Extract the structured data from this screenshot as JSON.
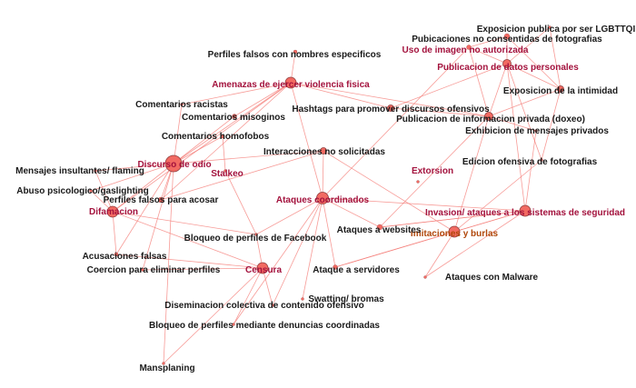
{
  "colors": {
    "node_fill": "#f26a62",
    "node_stroke": "#8c3b3b",
    "edge": "#f47a74",
    "label_default": "#1a1a1a",
    "label_category": "#a3123d",
    "label_highlight": "#b0470a"
  },
  "nodes": [
    {
      "id": "perf_nombres",
      "label": "Perfiles falsos con nombres especificos",
      "kind": "default"
    },
    {
      "id": "amenazas",
      "label": "Amenazas de ejercer violencia fisica",
      "kind": "category"
    },
    {
      "id": "racistas",
      "label": "Comentarios racistas",
      "kind": "default"
    },
    {
      "id": "misoginos",
      "label": "Comentarios misoginos",
      "kind": "default"
    },
    {
      "id": "homofobos",
      "label": "Comentarios homofobos",
      "kind": "default"
    },
    {
      "id": "odio",
      "label": "Discurso de odio",
      "kind": "category"
    },
    {
      "id": "flaming",
      "label": "Mensajes insultantes/ flaming",
      "kind": "default"
    },
    {
      "id": "abuso",
      "label": "Abuso psicologico/gaslighting",
      "kind": "default"
    },
    {
      "id": "perf_acosar",
      "label": "Perfiles falsos para acosar",
      "kind": "default"
    },
    {
      "id": "difamacion",
      "label": "Difamacion",
      "kind": "category"
    },
    {
      "id": "stalkeo",
      "label": "Stalkeo",
      "kind": "category"
    },
    {
      "id": "interacciones",
      "label": "Interacciones no solicitadas",
      "kind": "default"
    },
    {
      "id": "hashtags",
      "label": "Hashtags para promover discursos ofensivos",
      "kind": "default"
    },
    {
      "id": "coordinados",
      "label": "Ataques coordinados",
      "kind": "category"
    },
    {
      "id": "uso_imagen",
      "label": "Uso de imagen no autorizada",
      "kind": "category"
    },
    {
      "id": "pubicaciones",
      "label": "Pubicaciones no consentidas de fotografias",
      "kind": "default"
    },
    {
      "id": "lgbttqi",
      "label": "Exposicion publica por ser LGBTTQI",
      "kind": "default"
    },
    {
      "id": "datos",
      "label": "Publicacion de datos personales",
      "kind": "category"
    },
    {
      "id": "intimidad",
      "label": "Exposicion de la intimidad",
      "kind": "default"
    },
    {
      "id": "doxeo",
      "label": "Publicacion de informacion privada (doxeo)",
      "kind": "default"
    },
    {
      "id": "exhibicion",
      "label": "Exhibicion de mensajes privados",
      "kind": "default"
    },
    {
      "id": "edicion",
      "label": "Edicion ofensiva de fotografias",
      "kind": "default"
    },
    {
      "id": "extorsion",
      "label": "Extorsion",
      "kind": "category"
    },
    {
      "id": "invasion",
      "label": "Invasion/ ataques a los sistemas de seguridad",
      "kind": "category"
    },
    {
      "id": "imitaciones",
      "label": "Imitaciones y burlas",
      "kind": "highlight"
    },
    {
      "id": "websites",
      "label": "Ataques a websites",
      "kind": "default"
    },
    {
      "id": "bloq_fb",
      "label": "Bloqueo de perfiles de Facebook",
      "kind": "default"
    },
    {
      "id": "acusaciones",
      "label": "Acusaciones falsas",
      "kind": "default"
    },
    {
      "id": "coercion",
      "label": "Coercion para eliminar perfiles",
      "kind": "default"
    },
    {
      "id": "censura",
      "label": "Censura",
      "kind": "category"
    },
    {
      "id": "servidores",
      "label": "Ataque a servidores",
      "kind": "default"
    },
    {
      "id": "malware",
      "label": "Ataques con Malware",
      "kind": "default"
    },
    {
      "id": "swatting",
      "label": "Swatting/ bromas",
      "kind": "default"
    },
    {
      "id": "diseminacion",
      "label": "Diseminacion colectiva de contenido ofensivo",
      "kind": "default"
    },
    {
      "id": "bloq_denuncias",
      "label": "Bloqueo de perfiles mediante denuncias coordinadas",
      "kind": "default"
    },
    {
      "id": "mansplaning",
      "label": "Mansplaning",
      "kind": "default"
    }
  ],
  "edges": [
    [
      "amenazas",
      "perf_nombres"
    ],
    [
      "amenazas",
      "odio"
    ],
    [
      "amenazas",
      "misoginos"
    ],
    [
      "amenazas",
      "hashtags"
    ],
    [
      "amenazas",
      "doxeo"
    ],
    [
      "amenazas",
      "difamacion"
    ],
    [
      "amenazas",
      "perf_acosar"
    ],
    [
      "amenazas",
      "coordinados"
    ],
    [
      "amenazas",
      "racistas"
    ],
    [
      "odio",
      "racistas"
    ],
    [
      "odio",
      "misoginos"
    ],
    [
      "odio",
      "homofobos"
    ],
    [
      "odio",
      "flaming"
    ],
    [
      "odio",
      "abuso"
    ],
    [
      "odio",
      "perf_acosar"
    ],
    [
      "odio",
      "difamacion"
    ],
    [
      "odio",
      "interacciones"
    ],
    [
      "odio",
      "acusaciones"
    ],
    [
      "odio",
      "coercion"
    ],
    [
      "odio",
      "mansplaning"
    ],
    [
      "homofobos",
      "stalkeo"
    ],
    [
      "stalkeo",
      "bloq_fb"
    ],
    [
      "perf_acosar",
      "interacciones"
    ],
    [
      "flaming",
      "difamacion"
    ],
    [
      "abuso",
      "difamacion"
    ],
    [
      "difamacion",
      "acusaciones"
    ],
    [
      "difamacion",
      "bloq_fb"
    ],
    [
      "difamacion",
      "censura"
    ],
    [
      "interacciones",
      "coordinados"
    ],
    [
      "interacciones",
      "imitaciones"
    ],
    [
      "coordinados",
      "bloq_fb"
    ],
    [
      "coordinados",
      "diseminacion"
    ],
    [
      "coordinados",
      "bloq_denuncias"
    ],
    [
      "coordinados",
      "swatting"
    ],
    [
      "coordinados",
      "servidores"
    ],
    [
      "coordinados",
      "websites"
    ],
    [
      "coordinados",
      "uso_imagen"
    ],
    [
      "coordinados",
      "invasion"
    ],
    [
      "censura",
      "bloq_fb"
    ],
    [
      "censura",
      "acusaciones"
    ],
    [
      "censura",
      "coercion"
    ],
    [
      "censura",
      "bloq_denuncias"
    ],
    [
      "censura",
      "mansplaning"
    ],
    [
      "censura",
      "diseminacion"
    ],
    [
      "datos",
      "uso_imagen"
    ],
    [
      "datos",
      "pubicaciones"
    ],
    [
      "datos",
      "lgbttqi"
    ],
    [
      "datos",
      "intimidad"
    ],
    [
      "datos",
      "doxeo"
    ],
    [
      "datos",
      "edicion"
    ],
    [
      "datos",
      "hashtags"
    ],
    [
      "datos",
      "invasion"
    ],
    [
      "uso_imagen",
      "doxeo"
    ],
    [
      "uso_imagen",
      "pubicaciones"
    ],
    [
      "pubicaciones",
      "intimidad"
    ],
    [
      "lgbttqi",
      "intimidad"
    ],
    [
      "hashtags",
      "doxeo"
    ],
    [
      "doxeo",
      "intimidad"
    ],
    [
      "doxeo",
      "imitaciones"
    ],
    [
      "doxeo",
      "exhibicion"
    ],
    [
      "doxeo",
      "websites"
    ],
    [
      "intimidad",
      "edicion"
    ],
    [
      "edicion",
      "imitaciones"
    ],
    [
      "exhibicion",
      "invasion"
    ],
    [
      "invasion",
      "imitaciones"
    ],
    [
      "invasion",
      "malware"
    ],
    [
      "invasion",
      "servidores"
    ],
    [
      "invasion",
      "websites"
    ],
    [
      "imitaciones",
      "malware"
    ],
    [
      "imitaciones",
      "servidores"
    ],
    [
      "websites",
      "invasion"
    ]
  ]
}
